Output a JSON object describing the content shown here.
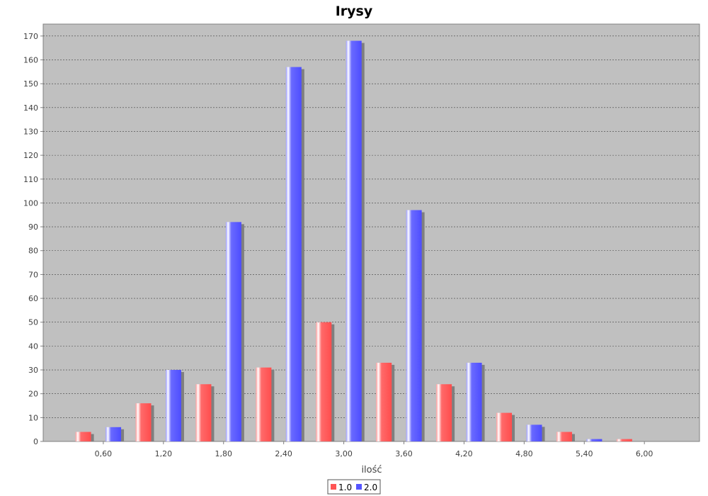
{
  "chart_data": {
    "type": "bar",
    "title": "Irysy",
    "xlabel": "ilość",
    "ylabel": "",
    "ylim": [
      0,
      175
    ],
    "y_ticks": [
      0,
      10,
      20,
      30,
      40,
      50,
      60,
      70,
      80,
      90,
      100,
      110,
      120,
      130,
      140,
      150,
      160,
      170
    ],
    "grid": true,
    "legend_position": "bottom-center",
    "categories": [
      "0,60",
      "1,20",
      "1,80",
      "2,40",
      "3,00",
      "3,60",
      "4,20",
      "4,80",
      "5,40",
      "6,00"
    ],
    "series": [
      {
        "name": "1.0",
        "color": "#ff5555",
        "points": [
          [
            0.4,
            4
          ],
          [
            1.0,
            16
          ],
          [
            1.6,
            24
          ],
          [
            2.2,
            31
          ],
          [
            2.8,
            50
          ],
          [
            3.4,
            33
          ],
          [
            4.0,
            24
          ],
          [
            4.6,
            12
          ],
          [
            5.2,
            4
          ],
          [
            5.8,
            1
          ]
        ]
      },
      {
        "name": "2.0",
        "color": "#5555ff",
        "points": [
          [
            0.7,
            6
          ],
          [
            1.3,
            30
          ],
          [
            1.9,
            92
          ],
          [
            2.5,
            157
          ],
          [
            3.1,
            168
          ],
          [
            3.7,
            97
          ],
          [
            4.3,
            33
          ],
          [
            4.9,
            7
          ],
          [
            5.5,
            1
          ]
        ]
      }
    ],
    "xlim": [
      0.0,
      6.55
    ],
    "plot_background": "#c0c0c0"
  }
}
